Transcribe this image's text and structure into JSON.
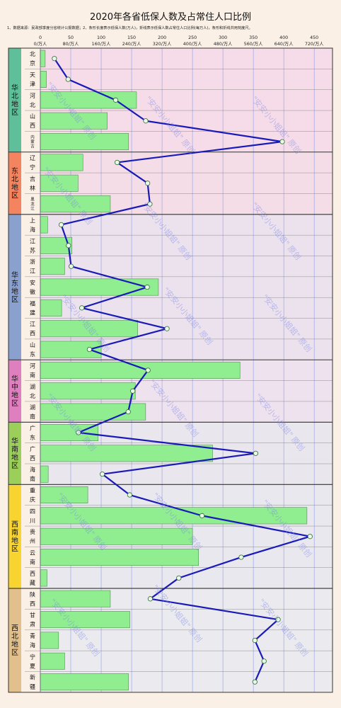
{
  "header": {
    "title": "2020年各省低保人数及占常住人口比例",
    "note": "1、数据来源：民政部季度分省统计公报数据；2、条形长度表示低保人数(万人)，折线表示低保人数占常住人口比例(每万人)，条形和折线共用刻度尺。"
  },
  "watermark": "\"安安小小姐姐\" 原创",
  "chart_data": {
    "type": "bar",
    "title": "2020年各省低保人数及占常住人口比例",
    "xlim": [
      0,
      480
    ],
    "ticks_top": [
      "0",
      "50",
      "100",
      "150",
      "200",
      "250",
      "300",
      "350",
      "400",
      "450"
    ],
    "ticks_bottom": [
      "0/万人",
      "80/万人",
      "160/万人",
      "240/万人",
      "320/万人",
      "400/万人",
      "480/万人",
      "560/万人",
      "640/万人",
      "720/万人"
    ],
    "regions": [
      {
        "name": "华北地区",
        "color": "#5fbf9a",
        "bg": "#f6dce8",
        "count": 5
      },
      {
        "name": "东北地区",
        "color": "#f4845f",
        "bg": "#f5dde8",
        "count": 3
      },
      {
        "name": "华东地区",
        "color": "#8aa0cf",
        "bg": "#ece2ee",
        "count": 7
      },
      {
        "name": "华中地区",
        "color": "#e07fbf",
        "bg": "#efe2ef",
        "count": 3
      },
      {
        "name": "华南地区",
        "color": "#9ccf5a",
        "bg": "#eae6ee",
        "count": 3
      },
      {
        "name": "西南地区",
        "color": "#f7d430",
        "bg": "#eae8ef",
        "count": 5
      },
      {
        "name": "西北地区",
        "color": "#e2c08e",
        "bg": "#ebebef",
        "count": 5
      }
    ],
    "provinces": [
      "北京",
      "天津",
      "河北",
      "山西",
      "内蒙古",
      "辽宁",
      "吉林",
      "黑龙江",
      "上海",
      "江苏",
      "浙江",
      "安徽",
      "福建",
      "江西",
      "山东",
      "河南",
      "湖北",
      "湖南",
      "广东",
      "广西",
      "海南",
      "重庆",
      "四川",
      "贵州",
      "云南",
      "西藏",
      "陕西",
      "甘肃",
      "青海",
      "宁夏",
      "新疆"
    ],
    "series": [
      {
        "name": "低保人数(万人)",
        "type": "bar",
        "values": [
          8,
          10,
          158,
          110,
          145,
          70,
          62,
          115,
          12,
          52,
          40,
          194,
          35,
          160,
          100,
          328,
          156,
          173,
          95,
          283,
          13,
          78,
          438,
          250,
          260,
          11,
          115,
          147,
          30,
          40,
          145
        ]
      },
      {
        "name": "占常住人口比例(每万人)",
        "type": "line",
        "values": [
          37,
          73,
          198,
          277,
          636,
          202,
          282,
          288,
          55,
          74,
          81,
          281,
          109,
          333,
          129,
          283,
          243,
          231,
          100,
          566,
          163,
          235,
          425,
          709,
          528,
          364,
          289,
          625,
          564,
          588,
          564
        ]
      }
    ]
  }
}
